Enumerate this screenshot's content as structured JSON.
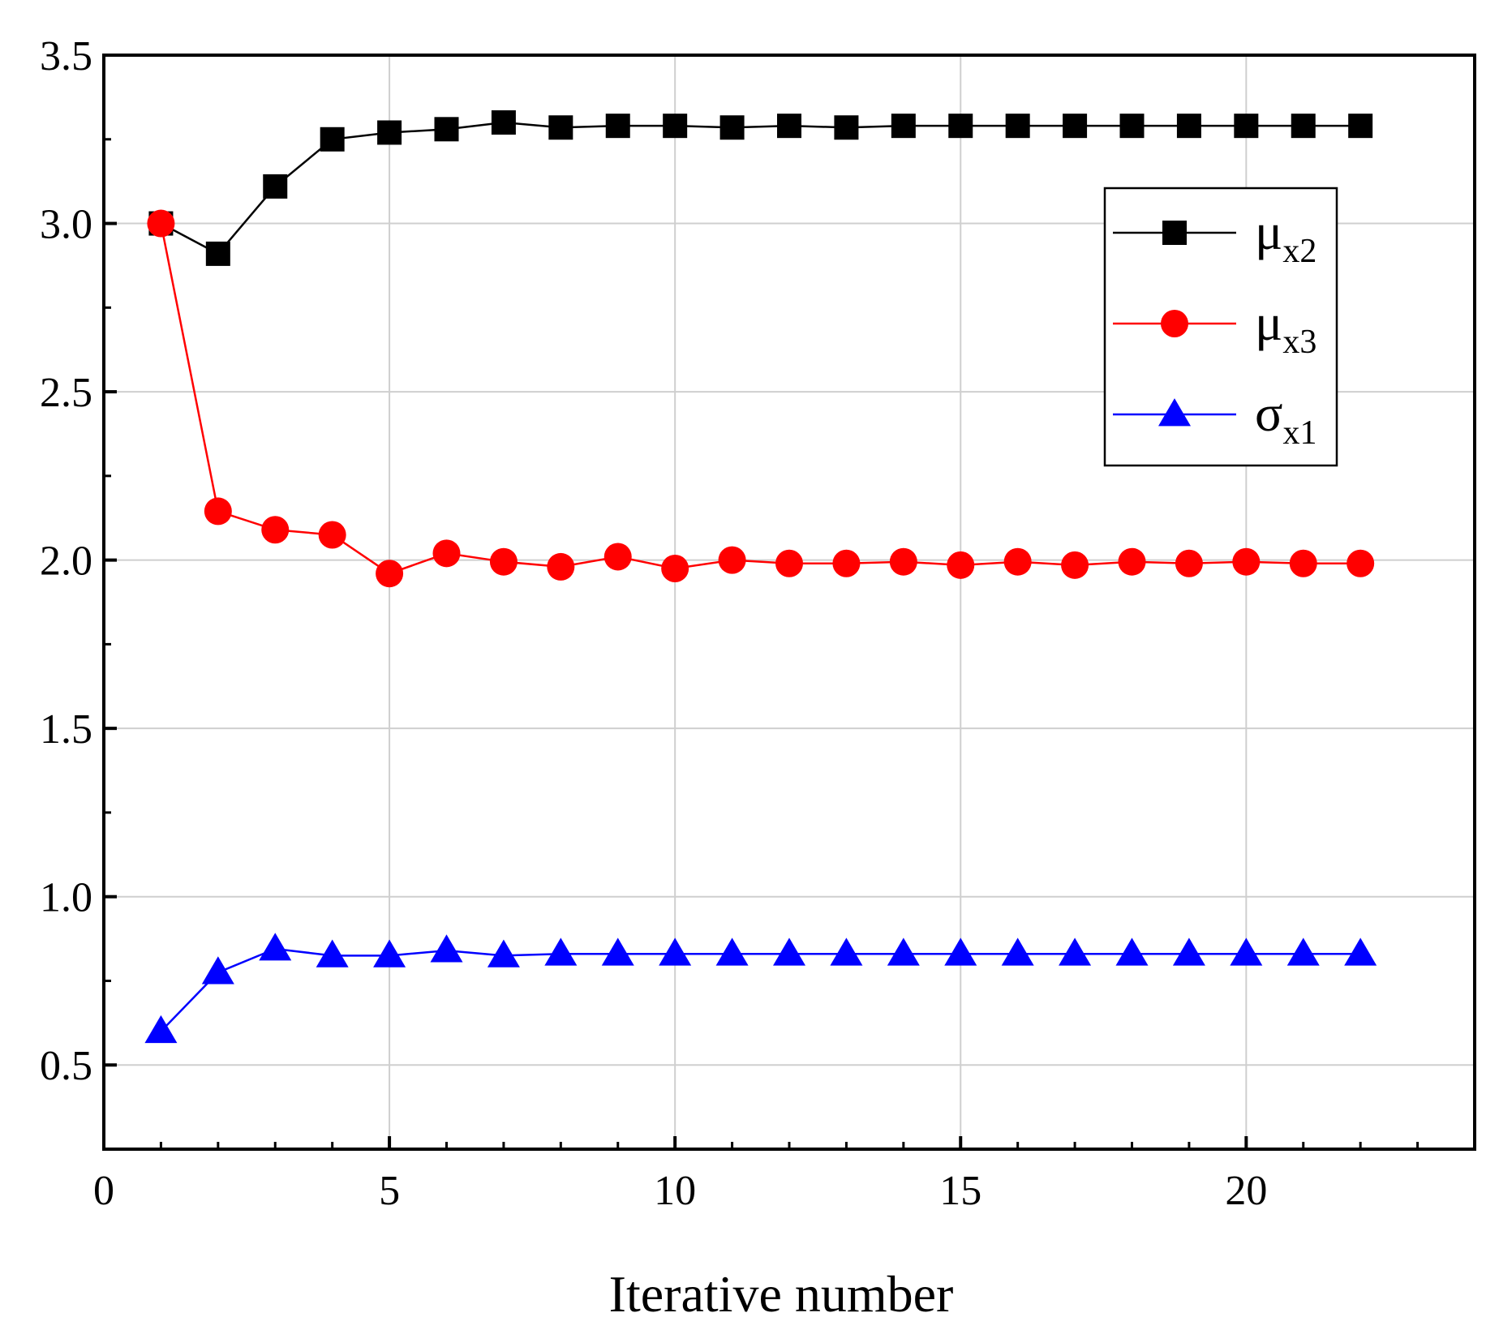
{
  "chart_data": {
    "type": "line",
    "title": "",
    "xlabel": "Iterative number",
    "ylabel": "",
    "xlim": [
      0,
      24
    ],
    "ylim": [
      0.25,
      3.5
    ],
    "xticks": [
      0,
      5,
      10,
      15,
      20
    ],
    "xtick_labels": [
      "0",
      "5",
      "10",
      "15",
      "20"
    ],
    "yticks": [
      0.5,
      1.0,
      1.5,
      2.0,
      2.5,
      3.0,
      3.5
    ],
    "ytick_labels": [
      "0.5",
      "1.0",
      "1.5",
      "2.0",
      "2.5",
      "3.0",
      "3.5"
    ],
    "grid": true,
    "legend_position": "top-right",
    "x": [
      1,
      2,
      3,
      4,
      5,
      6,
      7,
      8,
      9,
      10,
      11,
      12,
      13,
      14,
      15,
      16,
      17,
      18,
      19,
      20,
      21,
      22
    ],
    "series": [
      {
        "name": "μx2",
        "legend_base": "μ",
        "legend_sub": "x2",
        "color": "#000000",
        "marker": "square",
        "values": [
          3.0,
          2.91,
          3.11,
          3.25,
          3.27,
          3.28,
          3.3,
          3.285,
          3.29,
          3.29,
          3.285,
          3.29,
          3.285,
          3.29,
          3.29,
          3.29,
          3.29,
          3.29,
          3.29,
          3.29,
          3.29,
          3.29
        ]
      },
      {
        "name": "μx3",
        "legend_base": "μ",
        "legend_sub": "x3",
        "color": "#ff0000",
        "marker": "circle",
        "values": [
          3.0,
          2.145,
          2.09,
          2.075,
          1.96,
          2.02,
          1.995,
          1.98,
          2.01,
          1.975,
          2.0,
          1.99,
          1.99,
          1.995,
          1.985,
          1.995,
          1.985,
          1.995,
          1.99,
          1.995,
          1.99,
          1.99
        ]
      },
      {
        "name": "σx1",
        "legend_base": "σ",
        "legend_sub": "x1",
        "color": "#0000ff",
        "marker": "triangle",
        "values": [
          0.6,
          0.775,
          0.845,
          0.825,
          0.825,
          0.84,
          0.825,
          0.83,
          0.83,
          0.83,
          0.83,
          0.83,
          0.83,
          0.83,
          0.83,
          0.83,
          0.83,
          0.83,
          0.83,
          0.83,
          0.83,
          0.83
        ]
      }
    ]
  }
}
